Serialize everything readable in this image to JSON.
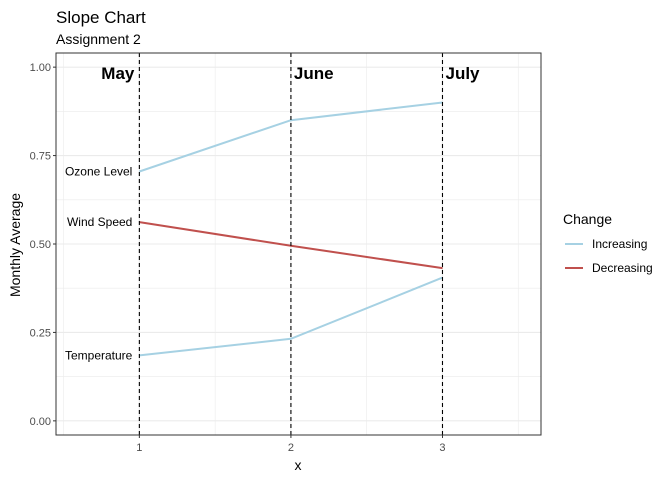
{
  "chart_data": {
    "type": "line",
    "title": "Slope Chart",
    "subtitle": "Assignment 2",
    "xlabel": "x",
    "ylabel": "Monthly Average",
    "x": [
      1,
      2,
      3
    ],
    "xlim": [
      0.45,
      3.65
    ],
    "ylim": [
      -0.04,
      1.04
    ],
    "x_ticks": [
      1,
      2,
      3
    ],
    "x_tick_labels": [
      "1",
      "2",
      "3"
    ],
    "y_ticks": [
      0,
      0.25,
      0.5,
      0.75,
      1
    ],
    "y_tick_labels": [
      "0.00",
      "0.25",
      "0.50",
      "0.75",
      "1.00"
    ],
    "month_labels": [
      {
        "x": 1,
        "text": "May",
        "align": "right"
      },
      {
        "x": 2,
        "text": "June",
        "align": "left"
      },
      {
        "x": 3,
        "text": "July",
        "align": "left"
      }
    ],
    "series": [
      {
        "name": "Ozone Level",
        "change": "Increasing",
        "values": [
          0.705,
          0.85,
          0.9
        ]
      },
      {
        "name": "Wind Speed",
        "change": "Decreasing",
        "values": [
          0.562,
          0.495,
          0.432
        ]
      },
      {
        "name": "Temperature",
        "change": "Increasing",
        "values": [
          0.185,
          0.232,
          0.405
        ]
      }
    ],
    "legend": {
      "title": "Change",
      "position": "right",
      "items": [
        {
          "label": "Increasing",
          "color": "#a6d1e3"
        },
        {
          "label": "Decreasing",
          "color": "#c0504d"
        }
      ]
    },
    "grid": true,
    "colors": {
      "Increasing": "#a6d1e3",
      "Decreasing": "#c0504d",
      "vline": "#000000",
      "grid": "#ebebeb",
      "border": "#333333"
    }
  }
}
